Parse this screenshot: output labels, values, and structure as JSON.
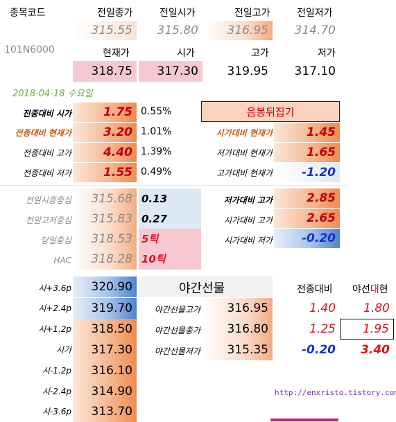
{
  "header": {
    "code_label": "종목코드",
    "code_value": "101N6000",
    "prev_close_label": "전일종가",
    "prev_open_label": "전일시가",
    "prev_high_label": "전일고가",
    "prev_low_label": "전일저가",
    "prev_close": "315.55",
    "prev_open": "315.80",
    "prev_high": "316.95",
    "prev_low": "314.70",
    "current_label": "현재가",
    "open_label": "시가",
    "high_label": "고가",
    "low_label": "저가",
    "current": "318.75",
    "open": "317.30",
    "high": "319.95",
    "low": "317.10"
  },
  "date_text": "2018-04-18 수요일",
  "vs_prev_close": [
    {
      "label": "전종대비 시가",
      "value": "1.75",
      "pct": "0.55%"
    },
    {
      "label": "전종대비 현재가",
      "value": "3.20",
      "pct": "1.01%"
    },
    {
      "label": "전종대비 고가",
      "value": "4.40",
      "pct": "1.39%"
    },
    {
      "label": "전종대비 저가",
      "value": "1.55",
      "pct": "0.49%"
    }
  ],
  "candle": {
    "title": "음봉뒤집기",
    "rows": [
      {
        "label": "시가대비 현재가",
        "value": "1.45"
      },
      {
        "label": "저가대비 현재가",
        "value": "1.65"
      },
      {
        "label": "고가대비 현재가",
        "value": "-1.20"
      }
    ]
  },
  "centers": [
    {
      "label": "전일시종중심",
      "value": "315.68",
      "extra": "0.13"
    },
    {
      "label": "전일고저중심",
      "value": "315.83",
      "extra": "0.27"
    },
    {
      "label": "당일중심",
      "value": "318.53",
      "extra": "5틱"
    },
    {
      "label": "HAC",
      "value": "318.28",
      "extra": "10틱"
    }
  ],
  "ranges": [
    {
      "label": "저가대비 고가",
      "value": "2.85"
    },
    {
      "label": "시가대비 고가",
      "value": "2.65"
    },
    {
      "label": "시가대비 저가",
      "value": "-0.20"
    }
  ],
  "levels": [
    {
      "label": "시+3.6p",
      "value": "320.90"
    },
    {
      "label": "시+2.4p",
      "value": "319.70"
    },
    {
      "label": "시+1.2p",
      "value": "318.50"
    },
    {
      "label": "시가",
      "value": "317.30"
    },
    {
      "label": "시-1.2p",
      "value": "316.10"
    },
    {
      "label": "시-2.4p",
      "value": "314.90"
    },
    {
      "label": "시-3.6p",
      "value": "313.70"
    }
  ],
  "night": {
    "title": "야간선물",
    "col_prev": "전종대비",
    "col_gap_a": "야선",
    "col_gap_b": "대",
    "col_gap_c": "현",
    "rows": [
      {
        "label": "야간선물고가",
        "value": "316.95",
        "vs_prev": "1.40",
        "vs_cur": "1.80"
      },
      {
        "label": "야간선물종가",
        "value": "316.80",
        "vs_prev": "1.25",
        "vs_cur": "1.95"
      },
      {
        "label": "야간선물저가",
        "value": "315.35",
        "vs_prev": "-0.20",
        "vs_cur": "3.40"
      }
    ]
  },
  "footer_url": "http://enxristo.tistory.com",
  "colors": {
    "accent_orange": "#ef8c52",
    "accent_blue": "#4f83d2",
    "pink": "#f8c8d2",
    "red": "#e0101a",
    "blue": "#1432c8"
  }
}
